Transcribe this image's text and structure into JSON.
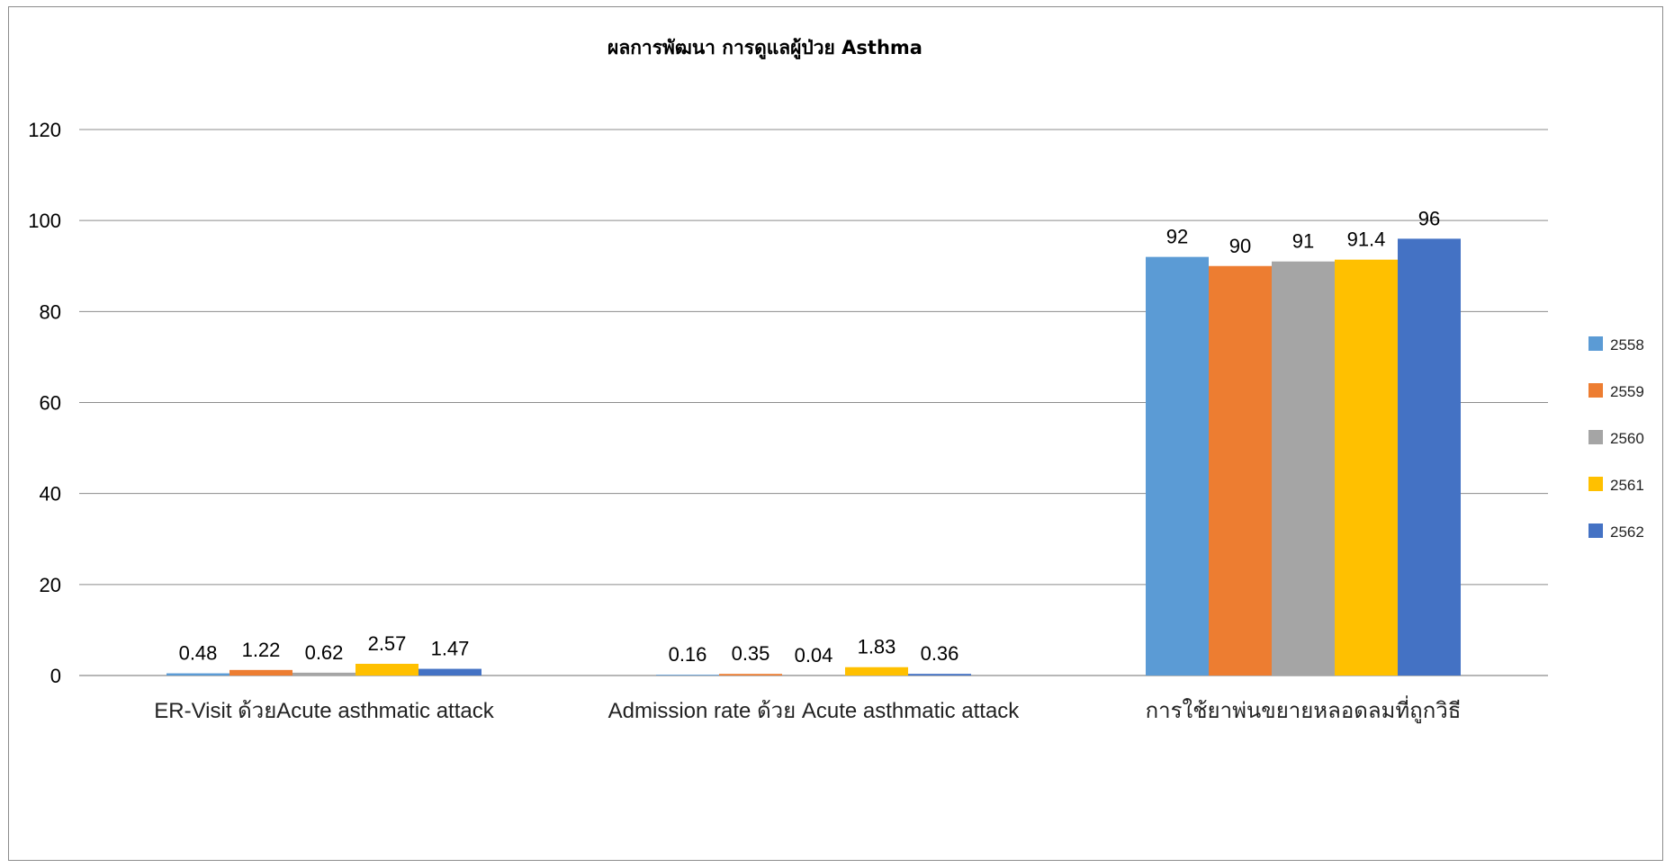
{
  "chart_data": {
    "type": "bar",
    "title": "ผลการพัฒนา การดูแลผู้ป่วย Asthma",
    "xlabel": "",
    "ylabel": "",
    "categories": [
      "ER-Visit ด้วยAcute asthmatic attack",
      "Admission rate ด้วย Acute asthmatic attack",
      "การใช้ยาพ่นขยายหลอดลมที่ถูกวิธี"
    ],
    "series": [
      {
        "name": "2558",
        "color": "#5b9bd5",
        "values": [
          0.48,
          0.16,
          92
        ]
      },
      {
        "name": "2559",
        "color": "#ed7d31",
        "values": [
          1.22,
          0.35,
          90
        ]
      },
      {
        "name": "2560",
        "color": "#a5a5a5",
        "values": [
          0.62,
          0.04,
          91
        ]
      },
      {
        "name": "2561",
        "color": "#ffc000",
        "values": [
          2.57,
          1.83,
          91.4
        ]
      },
      {
        "name": "2562",
        "color": "#4472c4",
        "values": [
          1.47,
          0.36,
          96
        ]
      }
    ],
    "ylim": [
      0,
      120
    ],
    "yticks": [
      "0",
      "20",
      "40",
      "60",
      "80",
      "100",
      "120"
    ],
    "grid": true,
    "legend_position": "right"
  }
}
